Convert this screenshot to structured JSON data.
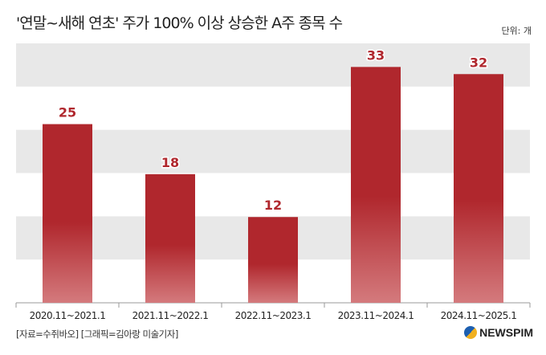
{
  "header": {
    "title": "'연말~새해 연초' 주가 100% 이상 상승한 A주 종목 수",
    "unit": "단위: 개"
  },
  "footer": {
    "source": "[자료=수쥐바오] [그래픽=김아랑 미술기자]",
    "logo": "NEWSPIM"
  },
  "colors": {
    "bar_top": "#b0272d",
    "bar_bottom": "#d47a7d",
    "band": "#e8e8e8",
    "label": "#b0272d"
  },
  "chart_data": {
    "type": "bar",
    "title": "'연말~새해 연초' 주가 100% 이상 상승한 A주 종목 수",
    "categories": [
      "2020.11~2021.1",
      "2021.11~2022.1",
      "2022.11~2023.1",
      "2023.11~2024.1",
      "2024.11~2025.1"
    ],
    "values": [
      25,
      18,
      12,
      33,
      32
    ],
    "xlabel": "",
    "ylabel": "단위: 개",
    "ylim": [
      0,
      36.3
    ],
    "grid": "alternating bands"
  }
}
